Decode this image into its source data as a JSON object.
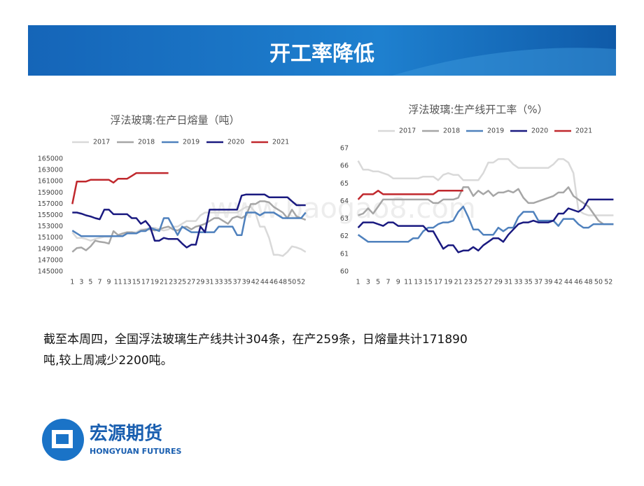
{
  "header": {
    "title": "开工率降低"
  },
  "watermark": "www.baogao8.com",
  "body": {
    "lines": [
      "截至本周四，全国浮法玻璃生产线共计304条，在产259条，日熔量共计171890",
      "吨,较上周减少2200吨。"
    ]
  },
  "logo": {
    "name": "宏源期货",
    "english": "HONGYUAN FUTURES"
  },
  "chart_data": [
    {
      "type": "line",
      "title": "浮法玻璃:在产日熔量（吨）",
      "grid": false,
      "legend": "top",
      "categories": [
        1,
        null,
        3,
        null,
        5,
        null,
        7,
        null,
        9,
        null,
        11,
        null,
        13,
        null,
        15,
        null,
        17,
        null,
        19,
        null,
        21,
        null,
        23,
        null,
        25,
        null,
        27,
        null,
        29,
        null,
        31,
        null,
        33,
        null,
        35,
        null,
        37,
        null,
        39,
        null,
        42,
        null,
        44,
        null,
        46,
        null,
        48,
        null,
        50,
        null,
        52,
        null
      ],
      "ylim": [
        145000,
        165000
      ],
      "yticks": [
        145000,
        147000,
        149000,
        151000,
        153000,
        155000,
        157000,
        159000,
        161000,
        163000,
        165000
      ],
      "series": [
        {
          "name": "2017",
          "color": "#d9d9d9",
          "values": [
            152000,
            151000,
            151000,
            150800,
            150500,
            150800,
            151000,
            151200,
            151200,
            151300,
            151300,
            151500,
            151800,
            152000,
            152000,
            152500,
            152500,
            152800,
            152800,
            152500,
            152300,
            152500,
            153000,
            153000,
            153500,
            154000,
            154000,
            154000,
            155000,
            155500,
            155500,
            155500,
            155500,
            155500,
            155500,
            155500,
            155500,
            156000,
            156500,
            156500,
            155500,
            153000,
            153000,
            151000,
            148000,
            148000,
            147800,
            148500,
            149500,
            149300,
            149000,
            148500
          ]
        },
        {
          "name": "2018",
          "color": "#a6a6a6",
          "values": [
            148500,
            149200,
            149300,
            148800,
            149500,
            150500,
            150300,
            150200,
            150000,
            152200,
            151500,
            151800,
            152000,
            152000,
            151800,
            152300,
            152500,
            152500,
            152300,
            152500,
            152800,
            153000,
            152500,
            152300,
            152800,
            153000,
            152500,
            153000,
            153200,
            153500,
            154000,
            154500,
            154500,
            154000,
            153500,
            154500,
            154800,
            154500,
            155000,
            157000,
            157000,
            157500,
            157500,
            157300,
            156500,
            156000,
            155500,
            154500,
            156000,
            154800,
            154500,
            154200
          ]
        },
        {
          "name": "2019",
          "color": "#4f81bd",
          "values": [
            152300,
            151800,
            151300,
            151300,
            151300,
            151300,
            151300,
            151300,
            151300,
            151300,
            151300,
            151300,
            151800,
            151800,
            151800,
            152200,
            152200,
            152800,
            152500,
            152200,
            154500,
            154500,
            153000,
            151500,
            153000,
            152500,
            152000,
            152000,
            152000,
            152000,
            152000,
            152000,
            153000,
            153000,
            153000,
            153000,
            151500,
            151500,
            155500,
            155500,
            155500,
            155000,
            155500,
            155500,
            155500,
            155000,
            154500,
            154500,
            154500,
            154500,
            154500,
            155500
          ]
        },
        {
          "name": "2020",
          "color": "#1a1a80",
          "values": [
            155500,
            155500,
            155300,
            155000,
            154800,
            154500,
            154300,
            156000,
            156000,
            155200,
            155200,
            155200,
            155200,
            154500,
            154500,
            153500,
            154000,
            153000,
            150500,
            150500,
            151000,
            150800,
            150800,
            150800,
            150000,
            149300,
            149800,
            149800,
            153000,
            152000,
            156000,
            156000,
            156000,
            156000,
            156000,
            156000,
            156000,
            158500,
            158700,
            158700,
            158700,
            158700,
            158700,
            158200,
            158200,
            158200,
            158200,
            158200,
            157500,
            156800,
            156800,
            156800
          ]
        },
        {
          "name": "2021",
          "color": "#c0282d",
          "values": [
            157000,
            161000,
            161000,
            161000,
            161300,
            161300,
            161300,
            161300,
            161300,
            160800,
            161500,
            161500,
            161500,
            162000,
            162500,
            162500,
            162500,
            162500,
            162500,
            162500,
            162500,
            162500,
            null,
            null,
            null,
            null,
            null,
            null,
            null,
            null,
            null,
            null,
            null,
            null,
            null,
            null,
            null,
            null,
            null,
            null,
            null,
            null,
            null,
            null,
            null,
            null,
            null,
            null,
            null,
            null,
            null,
            null
          ]
        }
      ]
    },
    {
      "type": "line",
      "title": "浮法玻璃:生产线开工率（%）",
      "grid": false,
      "legend": "top",
      "categories": [
        1,
        null,
        3,
        null,
        5,
        null,
        7,
        null,
        9,
        null,
        11,
        null,
        13,
        null,
        15,
        null,
        17,
        null,
        19,
        null,
        21,
        null,
        23,
        null,
        25,
        null,
        27,
        null,
        29,
        null,
        31,
        null,
        33,
        null,
        35,
        null,
        37,
        null,
        39,
        null,
        42,
        null,
        44,
        null,
        46,
        null,
        48,
        null,
        50,
        null,
        52,
        null
      ],
      "ylim": [
        60,
        67
      ],
      "yticks": [
        60,
        61,
        62,
        63,
        64,
        65,
        66,
        67
      ],
      "series": [
        {
          "name": "2017",
          "color": "#d9d9d9",
          "values": [
            66.3,
            65.8,
            65.8,
            65.7,
            65.7,
            65.6,
            65.5,
            65.3,
            65.3,
            65.3,
            65.3,
            65.3,
            65.3,
            65.4,
            65.4,
            65.4,
            65.2,
            65.5,
            65.6,
            65.5,
            65.5,
            65.2,
            65.2,
            65.2,
            65.2,
            65.6,
            66.2,
            66.2,
            66.4,
            66.4,
            66.4,
            66.1,
            65.9,
            65.9,
            65.9,
            65.9,
            65.9,
            65.9,
            65.9,
            66.1,
            66.4,
            66.4,
            66.2,
            65.6,
            63.5,
            63.3,
            63.2,
            63.2,
            63.2,
            63.2,
            63.2,
            63.2
          ]
        },
        {
          "name": "2018",
          "color": "#a6a6a6",
          "values": [
            63.2,
            63.3,
            63.6,
            63.3,
            63.7,
            64.1,
            64.1,
            64.1,
            64.1,
            64.1,
            64.1,
            64.1,
            64.1,
            64.1,
            64.1,
            63.9,
            63.9,
            64.1,
            64.1,
            64.1,
            64.2,
            64.8,
            64.8,
            64.3,
            64.6,
            64.4,
            64.6,
            64.3,
            64.5,
            64.5,
            64.6,
            64.5,
            64.7,
            64.2,
            63.9,
            63.9,
            64.0,
            64.1,
            64.2,
            64.3,
            64.5,
            64.5,
            64.8,
            64.3,
            64.1,
            63.9,
            63.7,
            63.3,
            62.9,
            62.7,
            62.7,
            62.7
          ]
        },
        {
          "name": "2019",
          "color": "#4f81bd",
          "values": [
            62.1,
            61.9,
            61.7,
            61.7,
            61.7,
            61.7,
            61.7,
            61.7,
            61.7,
            61.7,
            61.7,
            61.9,
            61.9,
            62.3,
            62.5,
            62.5,
            62.7,
            62.8,
            62.8,
            62.9,
            63.4,
            63.7,
            63.1,
            62.4,
            62.4,
            62.1,
            62.1,
            62.1,
            62.5,
            62.3,
            62.5,
            62.5,
            63.1,
            63.4,
            63.4,
            63.4,
            62.9,
            62.9,
            62.9,
            62.9,
            62.6,
            63.0,
            63.0,
            63.0,
            62.7,
            62.5,
            62.5,
            62.7,
            62.7,
            62.7,
            62.7,
            62.7
          ]
        },
        {
          "name": "2020",
          "color": "#1a1a80",
          "values": [
            62.5,
            62.8,
            62.8,
            62.8,
            62.7,
            62.6,
            62.8,
            62.8,
            62.6,
            62.6,
            62.6,
            62.6,
            62.6,
            62.6,
            62.3,
            62.3,
            61.8,
            61.3,
            61.5,
            61.5,
            61.1,
            61.2,
            61.2,
            61.4,
            61.2,
            61.5,
            61.7,
            61.9,
            61.9,
            61.7,
            62.1,
            62.4,
            62.7,
            62.8,
            62.8,
            62.9,
            62.8,
            62.8,
            62.8,
            62.9,
            63.3,
            63.3,
            63.6,
            63.5,
            63.4,
            63.6,
            64.1,
            64.1,
            64.1,
            64.1,
            64.1,
            64.1
          ]
        },
        {
          "name": "2021",
          "color": "#c0282d",
          "values": [
            64.1,
            64.4,
            64.4,
            64.4,
            64.6,
            64.4,
            64.4,
            64.4,
            64.4,
            64.4,
            64.4,
            64.4,
            64.4,
            64.4,
            64.4,
            64.4,
            64.6,
            64.6,
            64.6,
            64.6,
            64.6,
            64.6,
            null,
            null,
            null,
            null,
            null,
            null,
            null,
            null,
            null,
            null,
            null,
            null,
            null,
            null,
            null,
            null,
            null,
            null,
            null,
            null,
            null,
            null,
            null,
            null,
            null,
            null,
            null,
            null,
            null,
            null
          ]
        }
      ]
    }
  ]
}
